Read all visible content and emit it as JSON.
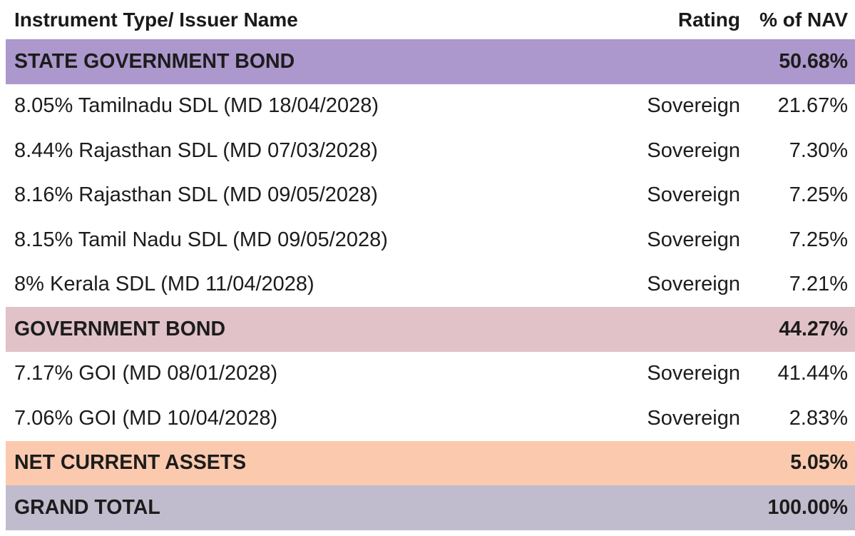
{
  "header": {
    "name": "Instrument Type/ Issuer Name",
    "rating": "Rating",
    "nav": "% of NAV"
  },
  "sections": {
    "state_govt": {
      "name": "STATE GOVERNMENT BOND",
      "nav": "50.68%",
      "color": "#ac98cc",
      "items": [
        {
          "name": "8.05% Tamilnadu SDL (MD 18/04/2028)",
          "rating": "Sovereign",
          "nav": "21.67%"
        },
        {
          "name": "8.44% Rajasthan SDL (MD 07/03/2028)",
          "rating": "Sovereign",
          "nav": "7.30%"
        },
        {
          "name": "8.16% Rajasthan SDL (MD 09/05/2028)",
          "rating": "Sovereign",
          "nav": "7.25%"
        },
        {
          "name": "8.15% Tamil Nadu SDL (MD 09/05/2028)",
          "rating": "Sovereign",
          "nav": "7.25%"
        },
        {
          "name": "8% Kerala SDL (MD 11/04/2028)",
          "rating": "Sovereign",
          "nav": "7.21%"
        }
      ]
    },
    "govt": {
      "name": "GOVERNMENT BOND",
      "nav": "44.27%",
      "color": "#e0c2c8",
      "items": [
        {
          "name": "7.17% GOI (MD 08/01/2028)",
          "rating": "Sovereign",
          "nav": "41.44%"
        },
        {
          "name": "7.06% GOI (MD 10/04/2028)",
          "rating": "Sovereign",
          "nav": "2.83%"
        }
      ]
    },
    "nca": {
      "name": "NET CURRENT ASSETS",
      "nav": "5.05%",
      "color": "#fbcaae"
    },
    "total": {
      "name": "GRAND TOTAL",
      "nav": "100.00%",
      "color": "#c0bccd"
    }
  }
}
